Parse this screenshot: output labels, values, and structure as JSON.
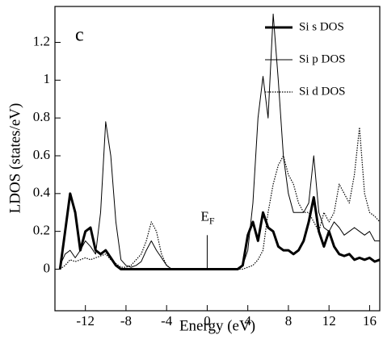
{
  "chart_data": {
    "type": "line",
    "panel_label": "c",
    "x_label": "Energy (eV)",
    "y_label": "LDOS (states/eV)",
    "annotation": {
      "text": "E",
      "subscript": "F",
      "x": 0,
      "y": 0.18
    },
    "xlim": [
      -15,
      17
    ],
    "ylim": [
      -0.22,
      1.39
    ],
    "xticks": [
      -12,
      -8,
      -4,
      0,
      4,
      8,
      12,
      16
    ],
    "yticks": [
      0,
      0.2,
      0.4,
      0.6,
      0.8,
      1,
      1.2
    ],
    "legend": "upper right",
    "x": [
      -14.5,
      -14,
      -13.5,
      -13,
      -12.5,
      -12,
      -11.5,
      -11,
      -10.5,
      -10,
      -9.5,
      -9,
      -8.5,
      -8,
      -7.5,
      -7,
      -6.5,
      -6,
      -5.5,
      -5,
      -4.5,
      -4,
      -3.5,
      -3,
      -2.5,
      -2,
      -1.5,
      -1,
      -0.5,
      0,
      0.5,
      1,
      1.5,
      2,
      2.5,
      3,
      3.5,
      4,
      4.5,
      5,
      5.5,
      6,
      6.5,
      7,
      7.5,
      8,
      8.5,
      9,
      9.5,
      10,
      10.5,
      11,
      11.5,
      12,
      12.5,
      13,
      13.5,
      14,
      14.5,
      15,
      15.5,
      16,
      16.5,
      17
    ],
    "series": [
      {
        "name": "Si s DOS",
        "color": "#000000",
        "width": 3,
        "dash": "solid",
        "values": [
          0,
          0.2,
          0.4,
          0.3,
          0.1,
          0.2,
          0.22,
          0.1,
          0.08,
          0.1,
          0.06,
          0.02,
          0,
          0,
          0,
          0,
          0,
          0,
          0,
          0,
          0,
          0,
          0,
          0,
          0,
          0,
          0,
          0,
          0,
          0,
          0,
          0,
          0,
          0,
          0,
          0,
          0.02,
          0.18,
          0.25,
          0.15,
          0.3,
          0.22,
          0.2,
          0.12,
          0.1,
          0.1,
          0.08,
          0.1,
          0.15,
          0.25,
          0.38,
          0.2,
          0.12,
          0.2,
          0.12,
          0.08,
          0.07,
          0.08,
          0.05,
          0.06,
          0.05,
          0.06,
          0.04,
          0.05
        ]
      },
      {
        "name": "Si p DOS",
        "color": "#000000",
        "width": 1,
        "dash": "solid",
        "values": [
          0.02,
          0.08,
          0.1,
          0.06,
          0.1,
          0.15,
          0.12,
          0.08,
          0.3,
          0.78,
          0.6,
          0.25,
          0.05,
          0.02,
          0.01,
          0.02,
          0.04,
          0.1,
          0.15,
          0.1,
          0.06,
          0.02,
          0,
          0,
          0,
          0,
          0,
          0,
          0,
          0,
          0,
          0,
          0,
          0,
          0,
          0,
          0.02,
          0.1,
          0.35,
          0.8,
          1.02,
          0.8,
          1.35,
          1,
          0.6,
          0.4,
          0.3,
          0.3,
          0.3,
          0.35,
          0.6,
          0.3,
          0.22,
          0.2,
          0.25,
          0.22,
          0.18,
          0.2,
          0.22,
          0.2,
          0.18,
          0.2,
          0.15,
          0.15
        ]
      },
      {
        "name": "Si d DOS",
        "color": "#000000",
        "width": 1.2,
        "dash": "dotted",
        "values": [
          0,
          0.02,
          0.05,
          0.04,
          0.05,
          0.06,
          0.05,
          0.06,
          0.07,
          0.08,
          0.05,
          0.03,
          0.01,
          0.01,
          0.02,
          0.05,
          0.08,
          0.15,
          0.25,
          0.2,
          0.08,
          0.02,
          0,
          0,
          0,
          0,
          0,
          0,
          0,
          0,
          0,
          0,
          0,
          0,
          0,
          0,
          0,
          0.01,
          0.02,
          0.05,
          0.1,
          0.3,
          0.45,
          0.55,
          0.6,
          0.5,
          0.45,
          0.35,
          0.3,
          0.3,
          0.25,
          0.2,
          0.3,
          0.25,
          0.3,
          0.45,
          0.4,
          0.35,
          0.5,
          0.75,
          0.4,
          0.3,
          0.28,
          0.25
        ]
      }
    ]
  }
}
